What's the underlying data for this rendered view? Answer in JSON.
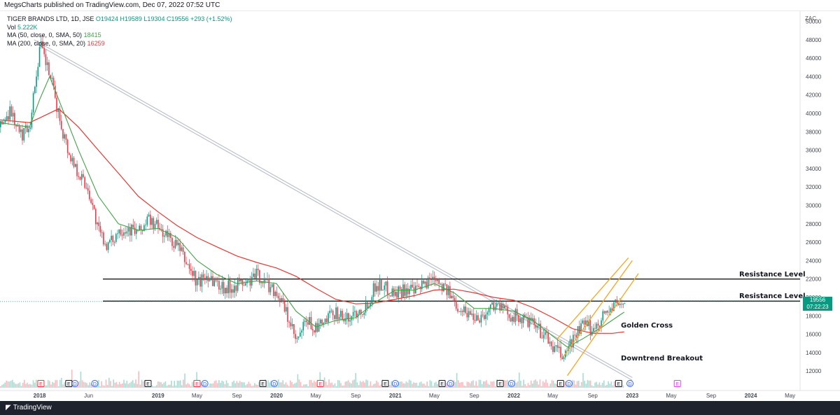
{
  "header": {
    "published": "MegsCharts published on TradingView.com, Dec 07, 2022 07:52 UTC"
  },
  "legend": {
    "symbol": "TIGER BRANDS LTD, 1D, JSE",
    "ohlc": "O19424 H19589 L19304 C19556 +293 (+1.52%)",
    "vol_label": "Vol",
    "vol_value": "5.222K",
    "ma50_label": "MA (50, close, 0, SMA, 50)",
    "ma50_value": "18415",
    "ma200_label": "MA (200, close, 0, SMA, 20)",
    "ma200_value": "16259"
  },
  "annotations": {
    "resistance_upper": "Resistance Level",
    "resistance_lower": "Resistance Level",
    "golden_cross": "Golden Cross",
    "downtrend_breakout": "Downtrend Breakout"
  },
  "price_tag": {
    "price": "19556",
    "countdown": "07:22:23"
  },
  "footer": {
    "brand": "TradingView"
  },
  "colors": {
    "price_up": "#089981",
    "price_down": "#f23645",
    "ma50": "#43a047",
    "ma200": "#e53935",
    "channel": "#f5a623",
    "trendline": "#b8bcc8",
    "resistance": "#000000",
    "footer_bg": "#1e222d"
  },
  "chart_data": {
    "type": "candlestick",
    "unit": "ZAC",
    "title": "TIGER BRANDS LTD, 1D, JSE",
    "ylim": [
      10800,
      50800
    ],
    "y_ticks": [
      12000,
      14000,
      16000,
      18000,
      20000,
      22000,
      24000,
      26000,
      28000,
      30000,
      32000,
      34000,
      36000,
      38000,
      40000,
      42000,
      44000,
      46000,
      48000,
      50000
    ],
    "x_range": [
      "2017-09-01",
      "2024-06-01"
    ],
    "x_ticks": [
      {
        "label": "2018",
        "date": "2018-01-01",
        "bold": true
      },
      {
        "label": "Jun",
        "date": "2018-06-01"
      },
      {
        "label": "2019",
        "date": "2019-01-01",
        "bold": true
      },
      {
        "label": "May",
        "date": "2019-05-01"
      },
      {
        "label": "Sep",
        "date": "2019-09-01"
      },
      {
        "label": "2020",
        "date": "2020-01-01",
        "bold": true
      },
      {
        "label": "May",
        "date": "2020-05-01"
      },
      {
        "label": "Sep",
        "date": "2020-09-01"
      },
      {
        "label": "2021",
        "date": "2021-01-01",
        "bold": true
      },
      {
        "label": "May",
        "date": "2021-05-01"
      },
      {
        "label": "Sep",
        "date": "2021-09-01"
      },
      {
        "label": "2022",
        "date": "2022-01-01",
        "bold": true
      },
      {
        "label": "May",
        "date": "2022-05-01"
      },
      {
        "label": "Sep",
        "date": "2022-09-01"
      },
      {
        "label": "2023",
        "date": "2023-01-01",
        "bold": true
      },
      {
        "label": "May",
        "date": "2023-05-01"
      },
      {
        "label": "Sep",
        "date": "2023-09-01"
      },
      {
        "label": "2024",
        "date": "2024-01-01",
        "bold": true
      },
      {
        "label": "May",
        "date": "2024-05-01"
      }
    ],
    "price_path": [
      [
        "2017-09-01",
        38500
      ],
      [
        "2017-10-01",
        40500
      ],
      [
        "2017-11-01",
        37500
      ],
      [
        "2017-12-01",
        39000
      ],
      [
        "2018-01-01",
        47500
      ],
      [
        "2018-02-01",
        44000
      ],
      [
        "2018-03-01",
        39500
      ],
      [
        "2018-04-01",
        35500
      ],
      [
        "2018-05-01",
        33500
      ],
      [
        "2018-06-01",
        31500
      ],
      [
        "2018-07-01",
        27000
      ],
      [
        "2018-08-01",
        25500
      ],
      [
        "2018-09-01",
        27500
      ],
      [
        "2018-10-01",
        27500
      ],
      [
        "2018-11-01",
        27000
      ],
      [
        "2018-12-01",
        28500
      ],
      [
        "2019-01-01",
        27500
      ],
      [
        "2019-02-01",
        26500
      ],
      [
        "2019-03-01",
        25500
      ],
      [
        "2019-04-01",
        23500
      ],
      [
        "2019-05-01",
        21500
      ],
      [
        "2019-06-01",
        22500
      ],
      [
        "2019-07-01",
        21500
      ],
      [
        "2019-08-01",
        21000
      ],
      [
        "2019-09-01",
        21500
      ],
      [
        "2019-10-01",
        21500
      ],
      [
        "2019-11-01",
        22500
      ],
      [
        "2019-12-01",
        21500
      ],
      [
        "2020-01-01",
        20500
      ],
      [
        "2020-02-01",
        18000
      ],
      [
        "2020-03-01",
        15000
      ],
      [
        "2020-04-01",
        17500
      ],
      [
        "2020-05-01",
        16500
      ],
      [
        "2020-06-01",
        17500
      ],
      [
        "2020-07-01",
        18500
      ],
      [
        "2020-08-01",
        17500
      ],
      [
        "2020-09-01",
        18500
      ],
      [
        "2020-10-01",
        19000
      ],
      [
        "2020-11-01",
        21500
      ],
      [
        "2020-12-01",
        21000
      ],
      [
        "2021-01-01",
        20500
      ],
      [
        "2021-02-01",
        21000
      ],
      [
        "2021-03-01",
        20500
      ],
      [
        "2021-04-01",
        21500
      ],
      [
        "2021-05-01",
        22500
      ],
      [
        "2021-06-01",
        21000
      ],
      [
        "2021-07-01",
        19500
      ],
      [
        "2021-08-01",
        18500
      ],
      [
        "2021-09-01",
        18000
      ],
      [
        "2021-10-01",
        18000
      ],
      [
        "2021-11-01",
        19500
      ],
      [
        "2021-12-01",
        18500
      ],
      [
        "2022-01-01",
        18000
      ],
      [
        "2022-02-01",
        17500
      ],
      [
        "2022-03-01",
        17000
      ],
      [
        "2022-04-01",
        16000
      ],
      [
        "2022-05-01",
        14500
      ],
      [
        "2022-06-01",
        13500
      ],
      [
        "2022-07-01",
        15500
      ],
      [
        "2022-08-01",
        17000
      ],
      [
        "2022-09-01",
        16500
      ],
      [
        "2022-10-01",
        18000
      ],
      [
        "2022-11-01",
        19000
      ],
      [
        "2022-12-07",
        19556
      ]
    ],
    "ma50_path": [
      [
        "2017-09-01",
        39000
      ],
      [
        "2017-12-01",
        38500
      ],
      [
        "2018-01-01",
        41500
      ],
      [
        "2018-02-01",
        44000
      ],
      [
        "2018-03-01",
        41500
      ],
      [
        "2018-05-01",
        36000
      ],
      [
        "2018-07-01",
        31000
      ],
      [
        "2018-09-01",
        28000
      ],
      [
        "2018-11-01",
        27300
      ],
      [
        "2019-01-01",
        27500
      ],
      [
        "2019-03-01",
        26500
      ],
      [
        "2019-05-01",
        24000
      ],
      [
        "2019-07-01",
        22500
      ],
      [
        "2019-09-01",
        21500
      ],
      [
        "2019-11-01",
        21800
      ],
      [
        "2020-01-01",
        21500
      ],
      [
        "2020-03-01",
        18500
      ],
      [
        "2020-05-01",
        16800
      ],
      [
        "2020-07-01",
        17500
      ],
      [
        "2020-09-01",
        17800
      ],
      [
        "2020-11-01",
        19500
      ],
      [
        "2021-01-01",
        20800
      ],
      [
        "2021-03-01",
        20800
      ],
      [
        "2021-05-01",
        21500
      ],
      [
        "2021-07-01",
        20500
      ],
      [
        "2021-09-01",
        18800
      ],
      [
        "2021-11-01",
        18800
      ],
      [
        "2022-01-01",
        18500
      ],
      [
        "2022-03-01",
        17500
      ],
      [
        "2022-05-01",
        15800
      ],
      [
        "2022-06-15",
        14600
      ],
      [
        "2022-08-01",
        15500
      ],
      [
        "2022-10-01",
        16800
      ],
      [
        "2022-12-07",
        18415
      ]
    ],
    "ma200_path": [
      [
        "2017-09-01",
        39300
      ],
      [
        "2017-12-01",
        39000
      ],
      [
        "2018-01-01",
        39500
      ],
      [
        "2018-03-01",
        40500
      ],
      [
        "2018-05-01",
        38500
      ],
      [
        "2018-07-01",
        36000
      ],
      [
        "2018-09-01",
        33500
      ],
      [
        "2018-11-01",
        31000
      ],
      [
        "2019-01-01",
        29300
      ],
      [
        "2019-03-01",
        27800
      ],
      [
        "2019-05-01",
        26500
      ],
      [
        "2019-07-01",
        25500
      ],
      [
        "2019-09-01",
        24500
      ],
      [
        "2019-11-01",
        23800
      ],
      [
        "2020-01-01",
        23200
      ],
      [
        "2020-03-01",
        22300
      ],
      [
        "2020-05-01",
        21000
      ],
      [
        "2020-07-01",
        19800
      ],
      [
        "2020-09-01",
        19300
      ],
      [
        "2020-11-01",
        19400
      ],
      [
        "2021-01-01",
        19800
      ],
      [
        "2021-03-01",
        20200
      ],
      [
        "2021-05-01",
        20800
      ],
      [
        "2021-07-01",
        20900
      ],
      [
        "2021-09-01",
        20500
      ],
      [
        "2021-11-01",
        20000
      ],
      [
        "2022-01-01",
        19700
      ],
      [
        "2022-03-01",
        18900
      ],
      [
        "2022-05-01",
        17800
      ],
      [
        "2022-07-01",
        16600
      ],
      [
        "2022-09-01",
        16100
      ],
      [
        "2022-11-01",
        16100
      ],
      [
        "2022-12-07",
        16259
      ]
    ],
    "resistance_levels": [
      {
        "label": "Resistance Level",
        "value": 22000,
        "from": "2018-07-15",
        "to": "2024-06-01"
      },
      {
        "label": "Resistance Level",
        "value": 19600,
        "from": "2018-07-15",
        "to": "2024-06-01"
      }
    ],
    "downtrend_line": {
      "from": [
        "2017-12-15",
        48000
      ],
      "to": [
        "2023-01-01",
        11300
      ]
    },
    "channel": {
      "lower": {
        "from": [
          "2022-06-15",
          11500
        ],
        "to": [
          "2023-01-20",
          22600
        ]
      },
      "middle": {
        "from": [
          "2022-06-01",
          13500
        ],
        "to": [
          "2023-01-01",
          24000
        ]
      },
      "upper": {
        "from": [
          "2022-05-15",
          15500
        ],
        "to": [
          "2022-12-20",
          24300
        ]
      }
    },
    "events": [
      {
        "type": "E",
        "date": "2018-01-05",
        "color": "red"
      },
      {
        "type": "D",
        "date": "2018-04-20",
        "color": "blue"
      },
      {
        "type": "E",
        "date": "2018-04-01",
        "color": "dark"
      },
      {
        "type": "D",
        "date": "2018-06-20",
        "color": "blue"
      },
      {
        "type": "E",
        "date": "2018-12-01",
        "color": "dark"
      },
      {
        "type": "E",
        "date": "2019-05-01",
        "color": "red"
      },
      {
        "type": "D",
        "date": "2019-05-25",
        "color": "blue"
      },
      {
        "type": "E",
        "date": "2019-11-20",
        "color": "dark"
      },
      {
        "type": "D",
        "date": "2019-12-25",
        "color": "blue"
      },
      {
        "type": "E",
        "date": "2020-05-15",
        "color": "red"
      },
      {
        "type": "E",
        "date": "2020-12-01",
        "color": "dark"
      },
      {
        "type": "D",
        "date": "2021-01-01",
        "color": "blue"
      },
      {
        "type": "E",
        "date": "2021-05-25",
        "color": "dark"
      },
      {
        "type": "D",
        "date": "2021-06-20",
        "color": "blue"
      },
      {
        "type": "E",
        "date": "2021-11-20",
        "color": "dark"
      },
      {
        "type": "D",
        "date": "2021-12-25",
        "color": "blue"
      },
      {
        "type": "E",
        "date": "2022-05-25",
        "color": "dark"
      },
      {
        "type": "D",
        "date": "2022-06-20",
        "color": "blue"
      },
      {
        "type": "E",
        "date": "2022-11-20",
        "color": "dark"
      },
      {
        "type": "D",
        "date": "2022-12-25",
        "color": "blue"
      },
      {
        "type": "E",
        "date": "2023-05-20",
        "color": "magenta"
      }
    ]
  }
}
